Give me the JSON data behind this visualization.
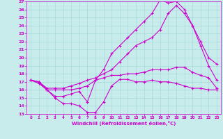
{
  "xlabel": "Windchill (Refroidissement éolien,°C)",
  "xlim": [
    -0.5,
    23.5
  ],
  "ylim": [
    13,
    27
  ],
  "yticks": [
    13,
    14,
    15,
    16,
    17,
    18,
    19,
    20,
    21,
    22,
    23,
    24,
    25,
    26,
    27
  ],
  "xticks": [
    0,
    1,
    2,
    3,
    4,
    5,
    6,
    7,
    8,
    9,
    10,
    11,
    12,
    13,
    14,
    15,
    16,
    17,
    18,
    19,
    20,
    21,
    22,
    23
  ],
  "bg_color": "#c8ecec",
  "grid_color": "#a8d8d8",
  "line_color": "#cc00cc",
  "line1_x": [
    0,
    1,
    2,
    3,
    4,
    5,
    6,
    7,
    8,
    9,
    10,
    11,
    12,
    13,
    14,
    15,
    16,
    17,
    18,
    19,
    20,
    21,
    22,
    23
  ],
  "line1_y": [
    17.2,
    16.8,
    16.0,
    15.0,
    14.3,
    14.3,
    14.0,
    13.2,
    13.2,
    14.5,
    16.5,
    17.3,
    17.3,
    17.0,
    17.0,
    17.2,
    17.0,
    17.0,
    16.8,
    16.5,
    16.2,
    16.2,
    16.0,
    16.0
  ],
  "line2_x": [
    0,
    1,
    2,
    3,
    4,
    5,
    6,
    7,
    8,
    9,
    10,
    11,
    12,
    13,
    14,
    15,
    16,
    17,
    18,
    19,
    20,
    21,
    22,
    23
  ],
  "line2_y": [
    17.2,
    17.0,
    16.0,
    16.0,
    16.0,
    16.0,
    16.2,
    16.5,
    17.2,
    17.5,
    17.8,
    17.8,
    18.0,
    18.0,
    18.2,
    18.5,
    18.5,
    18.5,
    18.8,
    18.8,
    18.2,
    17.8,
    17.5,
    16.2
  ],
  "line3_x": [
    0,
    1,
    2,
    3,
    4,
    5,
    6,
    7,
    8,
    9,
    10,
    11,
    12,
    13,
    14,
    15,
    16,
    17,
    18,
    19,
    20,
    21,
    22,
    23
  ],
  "line3_y": [
    17.2,
    17.0,
    16.2,
    16.2,
    16.2,
    16.5,
    16.8,
    17.2,
    17.5,
    18.0,
    18.5,
    19.5,
    20.5,
    21.5,
    22.0,
    22.5,
    23.5,
    25.5,
    26.5,
    25.5,
    24.0,
    22.0,
    20.0,
    19.2
  ],
  "line4_x": [
    0,
    1,
    2,
    3,
    4,
    5,
    6,
    7,
    8,
    9,
    10,
    11,
    12,
    13,
    14,
    15,
    16,
    17,
    18,
    19,
    20,
    21,
    22,
    23
  ],
  "line4_y": [
    17.2,
    17.0,
    16.0,
    15.2,
    15.2,
    15.5,
    15.8,
    14.5,
    17.2,
    18.5,
    20.5,
    21.5,
    22.5,
    23.5,
    24.5,
    25.5,
    27.2,
    26.8,
    27.0,
    26.0,
    24.0,
    21.5,
    19.0,
    17.2
  ]
}
